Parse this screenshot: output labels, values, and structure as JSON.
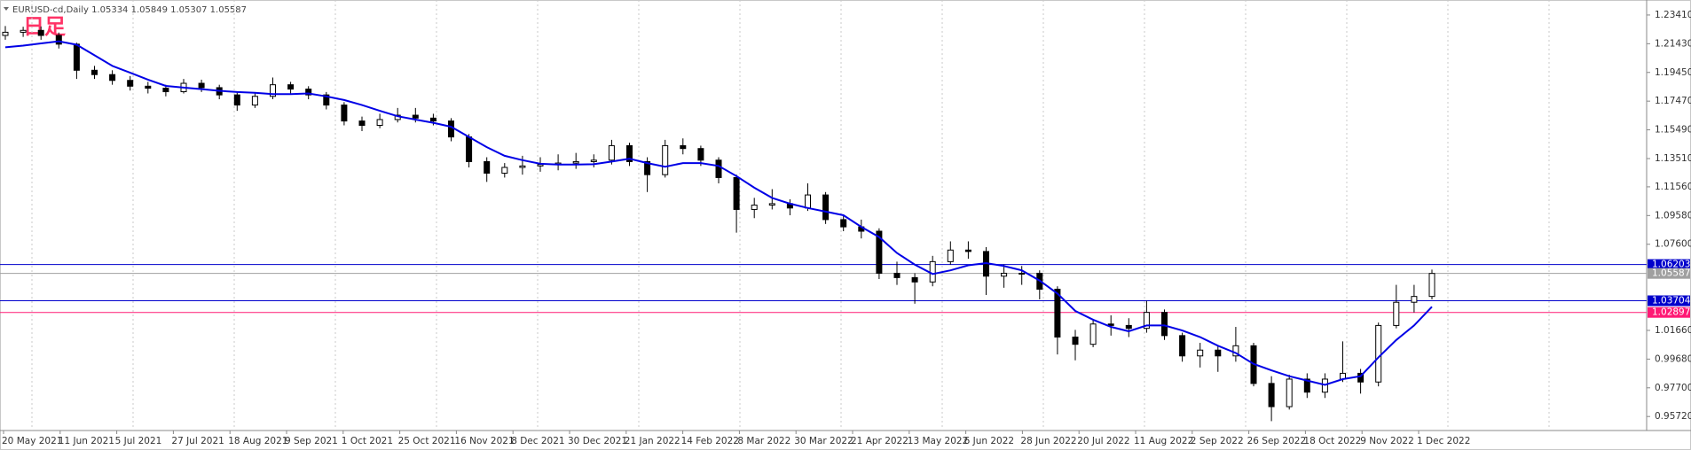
{
  "chart_data": {
    "type": "candlestick",
    "title": "EURUSD-cd,Daily  1.05334 1.05849 1.05307 1.05587",
    "annotation": "日足",
    "x_labels": [
      "20 May 2021",
      "11 Jun 2021",
      "5 Jul 2021",
      "27 Jul 2021",
      "18 Aug 2021",
      "9 Sep 2021",
      "1 Oct 2021",
      "25 Oct 2021",
      "16 Nov 2021",
      "8 Dec 2021",
      "30 Dec 2021",
      "21 Jan 2022",
      "14 Feb 2022",
      "8 Mar 2022",
      "30 Mar 2022",
      "21 Apr 2022",
      "13 May 2022",
      "6 Jun 2022",
      "28 Jun 2022",
      "20 Jul 2022",
      "11 Aug 2022",
      "2 Sep 2022",
      "26 Sep 2022",
      "18 Oct 2022",
      "9 Nov 2022",
      "1 Dec 2022"
    ],
    "candles": [
      [
        1.22,
        1.2265,
        1.217,
        1.2222
      ],
      [
        1.2222,
        1.226,
        1.219,
        1.2235
      ],
      [
        1.2235,
        1.2262,
        1.217,
        1.22
      ],
      [
        1.22,
        1.222,
        1.211,
        1.214
      ],
      [
        1.214,
        1.215,
        1.19,
        1.196
      ],
      [
        1.196,
        1.199,
        1.19,
        1.193
      ],
      [
        1.193,
        1.196,
        1.186,
        1.189
      ],
      [
        1.189,
        1.192,
        1.182,
        1.185
      ],
      [
        1.185,
        1.188,
        1.18,
        1.1836
      ],
      [
        1.1836,
        1.186,
        1.178,
        1.1812
      ],
      [
        1.1812,
        1.19,
        1.18,
        1.187
      ],
      [
        1.187,
        1.1895,
        1.181,
        1.184
      ],
      [
        1.184,
        1.186,
        1.176,
        1.179
      ],
      [
        1.179,
        1.181,
        1.168,
        1.172
      ],
      [
        1.172,
        1.18,
        1.17,
        1.178
      ],
      [
        1.178,
        1.191,
        1.176,
        1.186
      ],
      [
        1.186,
        1.188,
        1.18,
        1.183
      ],
      [
        1.183,
        1.185,
        1.176,
        1.179
      ],
      [
        1.179,
        1.181,
        1.169,
        1.172
      ],
      [
        1.172,
        1.174,
        1.158,
        1.161
      ],
      [
        1.161,
        1.164,
        1.154,
        1.158
      ],
      [
        1.158,
        1.166,
        1.156,
        1.162
      ],
      [
        1.162,
        1.17,
        1.16,
        1.165
      ],
      [
        1.165,
        1.17,
        1.16,
        1.163
      ],
      [
        1.163,
        1.166,
        1.158,
        1.161
      ],
      [
        1.161,
        1.163,
        1.147,
        1.15
      ],
      [
        1.15,
        1.152,
        1.129,
        1.133
      ],
      [
        1.133,
        1.136,
        1.119,
        1.125
      ],
      [
        1.125,
        1.132,
        1.122,
        1.129
      ],
      [
        1.129,
        1.137,
        1.124,
        1.13
      ],
      [
        1.13,
        1.136,
        1.126,
        1.131
      ],
      [
        1.131,
        1.138,
        1.127,
        1.132
      ],
      [
        1.132,
        1.139,
        1.128,
        1.133
      ],
      [
        1.133,
        1.138,
        1.129,
        1.134
      ],
      [
        1.134,
        1.148,
        1.131,
        1.144
      ],
      [
        1.144,
        1.146,
        1.13,
        1.133
      ],
      [
        1.133,
        1.136,
        1.112,
        1.124
      ],
      [
        1.124,
        1.148,
        1.122,
        1.144
      ],
      [
        1.144,
        1.149,
        1.138,
        1.142
      ],
      [
        1.142,
        1.144,
        1.13,
        1.134
      ],
      [
        1.134,
        1.136,
        1.118,
        1.122
      ],
      [
        1.122,
        1.124,
        1.084,
        1.1
      ],
      [
        1.1,
        1.108,
        1.094,
        1.103
      ],
      [
        1.103,
        1.114,
        1.1,
        1.104
      ],
      [
        1.104,
        1.107,
        1.096,
        1.101
      ],
      [
        1.101,
        1.118,
        1.099,
        1.11
      ],
      [
        1.11,
        1.112,
        1.09,
        1.093
      ],
      [
        1.093,
        1.096,
        1.085,
        1.088
      ],
      [
        1.088,
        1.093,
        1.08,
        1.085
      ],
      [
        1.085,
        1.087,
        1.052,
        1.056
      ],
      [
        1.056,
        1.064,
        1.048,
        1.053
      ],
      [
        1.053,
        1.056,
        1.035,
        1.05
      ],
      [
        1.05,
        1.068,
        1.047,
        1.064
      ],
      [
        1.064,
        1.078,
        1.062,
        1.072
      ],
      [
        1.072,
        1.078,
        1.066,
        1.071
      ],
      [
        1.071,
        1.074,
        1.041,
        1.054
      ],
      [
        1.054,
        1.062,
        1.046,
        1.056
      ],
      [
        1.056,
        1.061,
        1.048,
        1.056
      ],
      [
        1.056,
        1.058,
        1.038,
        1.045
      ],
      [
        1.045,
        1.047,
        1.0,
        1.012
      ],
      [
        1.012,
        1.017,
        0.996,
        1.007
      ],
      [
        1.007,
        1.024,
        1.005,
        1.021
      ],
      [
        1.021,
        1.027,
        1.013,
        1.02
      ],
      [
        1.02,
        1.025,
        1.012,
        1.018
      ],
      [
        1.018,
        1.037,
        1.015,
        1.029
      ],
      [
        1.029,
        1.031,
        1.01,
        1.013
      ],
      [
        1.013,
        1.015,
        0.995,
        0.999
      ],
      [
        0.999,
        1.008,
        0.991,
        1.003
      ],
      [
        1.003,
        1.006,
        0.988,
        0.999
      ],
      [
        0.999,
        1.019,
        0.995,
        1.006
      ],
      [
        1.006,
        1.008,
        0.978,
        0.98
      ],
      [
        0.98,
        0.985,
        0.954,
        0.964
      ],
      [
        0.964,
        0.986,
        0.962,
        0.983
      ],
      [
        0.983,
        0.987,
        0.97,
        0.974
      ],
      [
        0.974,
        0.987,
        0.97,
        0.983
      ],
      [
        0.983,
        1.009,
        0.981,
        0.987
      ],
      [
        0.987,
        0.99,
        0.973,
        0.981
      ],
      [
        0.981,
        1.022,
        0.978,
        1.02
      ],
      [
        1.02,
        1.048,
        1.018,
        1.036
      ],
      [
        1.036,
        1.048,
        1.029,
        1.04
      ],
      [
        1.04,
        1.0585,
        1.038,
        1.05587
      ]
    ],
    "up_color": "#ffffff",
    "down_color": "#000000",
    "ma": {
      "color": "#0000e6",
      "values": [
        1.2118,
        1.213,
        1.2145,
        1.216,
        1.2136,
        1.2063,
        1.199,
        1.1943,
        1.1895,
        1.1852,
        1.184,
        1.183,
        1.1818,
        1.181,
        1.1805,
        1.1795,
        1.1795,
        1.18,
        1.178,
        1.1755,
        1.172,
        1.168,
        1.1643,
        1.162,
        1.1598,
        1.157,
        1.15,
        1.143,
        1.137,
        1.134,
        1.1315,
        1.131,
        1.131,
        1.1312,
        1.133,
        1.135,
        1.132,
        1.1295,
        1.132,
        1.132,
        1.13,
        1.123,
        1.115,
        1.108,
        1.104,
        1.101,
        1.0985,
        1.096,
        1.088,
        1.081,
        1.07,
        1.062,
        1.0555,
        1.058,
        1.0615,
        1.063,
        1.061,
        1.058,
        1.051,
        1.042,
        1.03,
        1.024,
        1.019,
        1.016,
        1.02,
        1.02,
        1.0165,
        1.012,
        1.006,
        1.001,
        0.9935,
        0.989,
        0.985,
        0.982,
        0.979,
        0.983,
        0.985,
        0.998,
        1.01,
        1.02,
        1.0329
      ]
    },
    "levels": [
      {
        "value": 1.06203,
        "color": "#0000cc"
      },
      {
        "value": 1.05587,
        "color": "#a0a0a0"
      },
      {
        "value": 1.03704,
        "color": "#0000cc"
      },
      {
        "value": 1.02897,
        "color": "#ff1a75"
      }
    ],
    "ylim": [
      0.94755,
      1.24078
    ],
    "yticks": [
      {
        "value": 1.2341,
        "label": "1.23410"
      },
      {
        "value": 1.2143,
        "label": "1.21430"
      },
      {
        "value": 1.1945,
        "label": "1.19450"
      },
      {
        "value": 1.1747,
        "label": "1.17470"
      },
      {
        "value": 1.1549,
        "label": "1.15490"
      },
      {
        "value": 1.1351,
        "label": "1.13510"
      },
      {
        "value": 1.1156,
        "label": "1.11560"
      },
      {
        "value": 1.0958,
        "label": "1.09580"
      },
      {
        "value": 1.076,
        "label": "1.07600"
      },
      {
        "value": 1.0166,
        "label": "1.01660"
      },
      {
        "value": 0.9968,
        "label": "0.99680"
      },
      {
        "value": 0.977,
        "label": "0.97700"
      },
      {
        "value": 0.9572,
        "label": "0.95720"
      }
    ]
  }
}
